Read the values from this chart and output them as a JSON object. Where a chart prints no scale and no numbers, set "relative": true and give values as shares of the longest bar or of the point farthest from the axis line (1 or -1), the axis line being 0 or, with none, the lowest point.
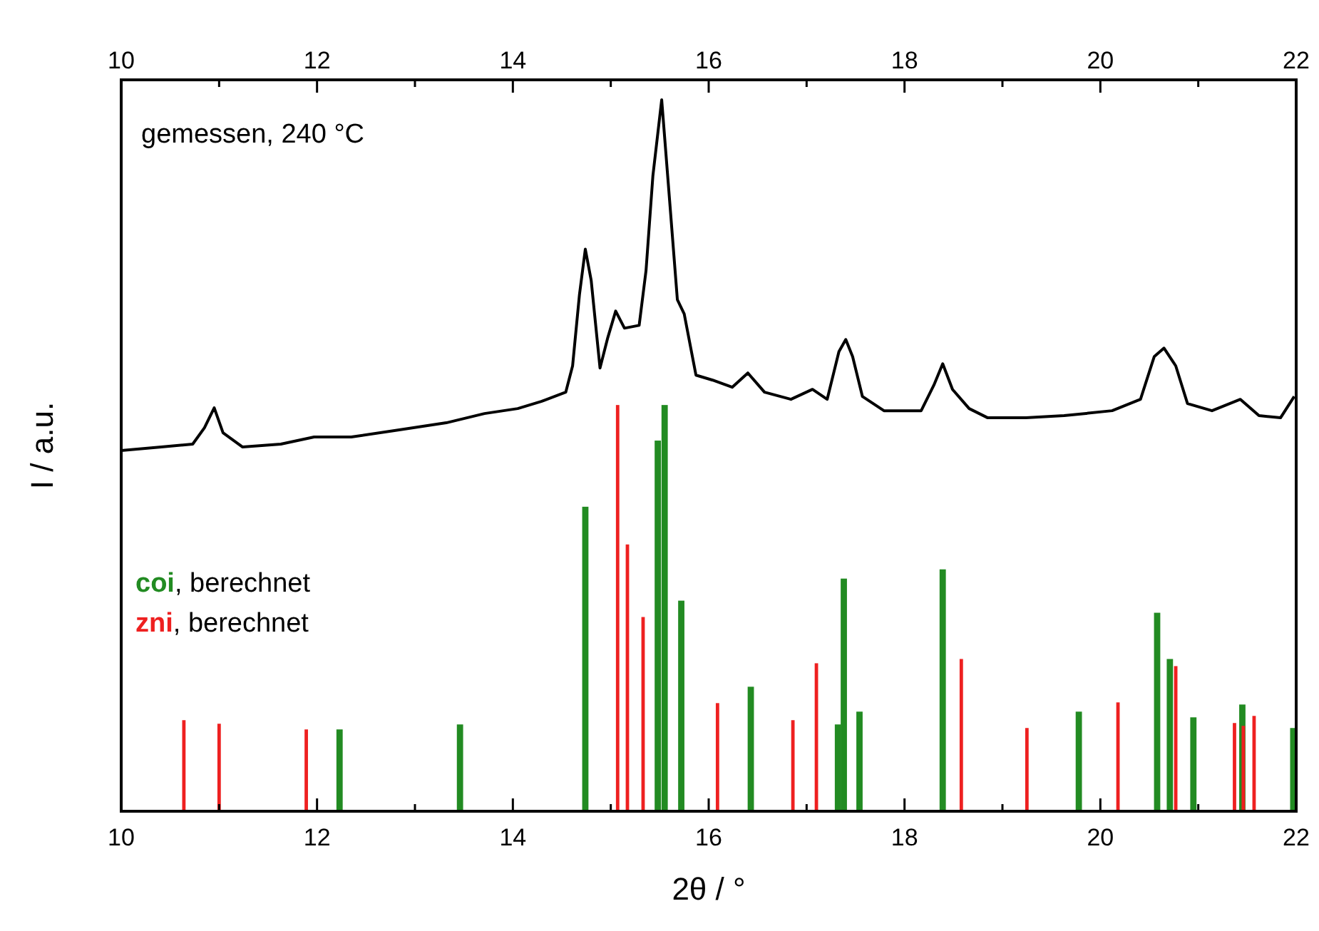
{
  "chart_data": {
    "type": "bar",
    "relative": true,
    "xlabel": "2θ / °",
    "ylabel": "I / a.u.",
    "xlim": [
      10,
      22
    ],
    "xticks": [
      10,
      {
        "value": 11,
        "label": null
      },
      12,
      {
        "value": 13,
        "label": null
      },
      14,
      {
        "value": 15,
        "label": null
      },
      16,
      {
        "value": 17,
        "label": null
      },
      18,
      {
        "value": 19,
        "label": null
      },
      20,
      {
        "value": 21,
        "label": null
      },
      22
    ],
    "x2lim": [
      10,
      22
    ],
    "x2ticks": [
      10,
      {
        "value": 11,
        "label": null
      },
      12,
      {
        "value": 13,
        "label": null
      },
      14,
      {
        "value": 15,
        "label": null
      },
      16,
      {
        "value": 17,
        "label": null
      },
      18,
      {
        "value": 19,
        "label": null
      },
      20,
      {
        "value": 21,
        "label": null
      },
      22
    ],
    "series": [
      {
        "name": "gemessen, 240 °C",
        "type": "line",
        "color": "#000000",
        "x": [
          10.0,
          10.41,
          10.73,
          10.85,
          10.95,
          11.04,
          11.24,
          11.63,
          11.97,
          12.35,
          12.84,
          13.32,
          13.71,
          14.05,
          14.29,
          14.54,
          14.61,
          14.68,
          14.74,
          14.8,
          14.89,
          14.97,
          15.05,
          15.14,
          15.29,
          15.36,
          15.43,
          15.52,
          15.6,
          15.68,
          15.75,
          15.87,
          16.04,
          16.24,
          16.4,
          16.57,
          16.84,
          17.06,
          17.21,
          17.33,
          17.4,
          17.47,
          17.57,
          17.79,
          18.17,
          18.3,
          18.39,
          18.49,
          18.66,
          18.85,
          19.24,
          19.63,
          20.12,
          20.41,
          20.55,
          20.65,
          20.77,
          20.89,
          21.14,
          21.43,
          21.62,
          21.84,
          21.98
        ],
        "values": [
          0.507,
          0.512,
          0.516,
          0.539,
          0.567,
          0.532,
          0.512,
          0.516,
          0.526,
          0.526,
          0.536,
          0.546,
          0.559,
          0.566,
          0.576,
          0.589,
          0.626,
          0.726,
          0.79,
          0.746,
          0.623,
          0.666,
          0.703,
          0.679,
          0.683,
          0.76,
          0.893,
          1,
          0.86,
          0.719,
          0.699,
          0.613,
          0.606,
          0.596,
          0.616,
          0.589,
          0.579,
          0.593,
          0.579,
          0.646,
          0.663,
          0.639,
          0.583,
          0.563,
          0.563,
          0.599,
          0.629,
          0.593,
          0.566,
          0.553,
          0.553,
          0.556,
          0.563,
          0.579,
          0.639,
          0.651,
          0.626,
          0.573,
          0.563,
          0.579,
          0.556,
          0.553,
          0.583
        ]
      },
      {
        "name": "coi, berechnet",
        "color": "#228b22",
        "x": [
          12.23,
          13.46,
          14.74,
          15.48,
          15.55,
          15.72,
          16.43,
          17.32,
          17.38,
          17.54,
          18.39,
          19.78,
          20.58,
          20.71,
          20.95,
          21.45,
          21.97
        ],
        "values": [
          0.115,
          0.122,
          0.428,
          0.521,
          0.571,
          0.296,
          0.175,
          0.122,
          0.327,
          0.14,
          0.34,
          0.14,
          0.279,
          0.214,
          0.132,
          0.15,
          0.117
        ]
      },
      {
        "name": "zni, berechnet",
        "color": "#ee2020",
        "x": [
          10.64,
          11.0,
          11.89,
          15.07,
          15.17,
          15.33,
          16.09,
          16.86,
          17.1,
          18.58,
          19.25,
          20.18,
          20.77,
          21.37,
          21.46,
          21.57
        ],
        "values": [
          0.128,
          0.123,
          0.115,
          0.571,
          0.375,
          0.273,
          0.152,
          0.128,
          0.208,
          0.214,
          0.117,
          0.153,
          0.204,
          0.124,
          0.12,
          0.134
        ]
      }
    ]
  }
}
